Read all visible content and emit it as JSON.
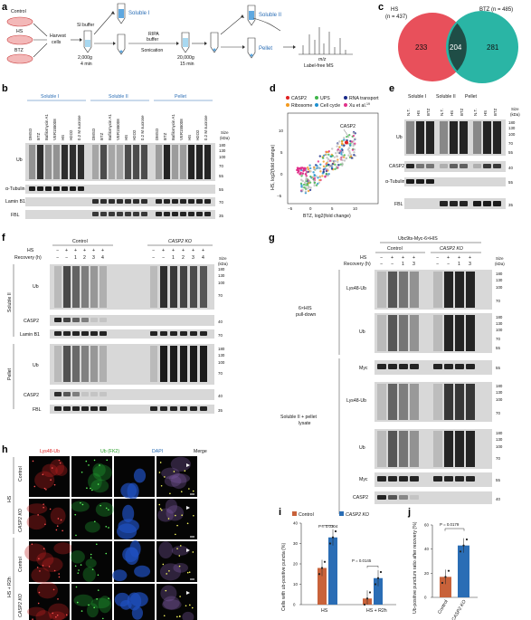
{
  "panel_labels": [
    "a",
    "b",
    "c",
    "d",
    "e",
    "f",
    "g",
    "h",
    "i",
    "j"
  ],
  "a": {
    "control": "Control",
    "hs": "HS",
    "btz": "BTZ",
    "harvest": "Harvest",
    "cells": "cells",
    "sl_buffer": "Sl buffer",
    "spin1": "2,000g",
    "time1": "4 min",
    "soluble1": "Soluble I",
    "ripa": "RIPA",
    "buffer": "buffer",
    "sonication": "Sonication",
    "spin2": "20,000g",
    "time2": "15 min",
    "soluble2": "Soluble II",
    "pellet": "Pellet",
    "mz": "m/z",
    "labelfree": "Label-free MS"
  },
  "b": {
    "groups": [
      "Soluble I",
      "Soluble II",
      "Pellet"
    ],
    "lanes": [
      "DMSO",
      "BTZ",
      "Bafilomycin A1",
      "VER155008",
      "HS",
      "H2O2",
      "0.2 M sucrose"
    ],
    "rows": [
      "Ub",
      "α-Tubulin",
      "Lamin B1",
      "FBL"
    ],
    "size_label": "Size\n(kDa)",
    "ub_sizes": [
      "180",
      "130",
      "100",
      "70",
      "55"
    ],
    "tub_size": "55",
    "lamin_size": "70",
    "fbl_size": "35"
  },
  "c": {
    "hs_label": "HS",
    "hs_n": "(n = 437)",
    "btz_label": "BTZ (n = 485)",
    "left_only": "233",
    "overlap": "204",
    "right_only": "281",
    "colors": {
      "hs": "#e8505b",
      "btz": "#2ab5a5",
      "overlap": "#1f4d46"
    }
  },
  "d": {
    "legend": [
      {
        "label": "CASP2",
        "color": "#e02020"
      },
      {
        "label": "UPS",
        "color": "#3fb54a"
      },
      {
        "label": "RNA transport",
        "color": "#1a2a8a"
      },
      {
        "label": "Ribosome",
        "color": "#f39a1e"
      },
      {
        "label": "Cell cycle",
        "color": "#1e90d0"
      },
      {
        "label": "Xu et al.",
        "color": "#e0308a"
      }
    ],
    "xu_ref": "19",
    "annotation": "CASP2",
    "xlabel": "BTZ, log2(fold change)",
    "ylabel": "HS, log2(fold change)",
    "xticks": [
      "−5",
      "0",
      "5",
      "10"
    ],
    "yticks": [
      "−5",
      "0",
      "5",
      "10"
    ]
  },
  "e": {
    "groups": [
      "Soluble I",
      "Soluble II",
      "Pellet"
    ],
    "lanes": [
      "N.T.",
      "HS",
      "BTZ"
    ],
    "rows": [
      "Ub",
      "CASP2",
      "α-Tubulin",
      "FBL"
    ],
    "size_label": "Size\n(kDa)",
    "ub_sizes": [
      "180",
      "130",
      "100",
      "70",
      "55"
    ],
    "casp_size": "40",
    "tub_size": "55",
    "fbl_size": "35"
  },
  "f": {
    "conditions": [
      "Control",
      "CASP2 KO"
    ],
    "hs_row": "HS",
    "recovery_row": "Recovery (h)",
    "hs_values": [
      "−",
      "+",
      "+",
      "+",
      "+",
      "+"
    ],
    "recovery_values": [
      "−",
      "−",
      "1",
      "2",
      "3",
      "4"
    ],
    "sections": [
      "Soluble II",
      "Pellet"
    ],
    "rows_sol": [
      "Ub",
      "CASP2",
      "Lamin B1"
    ],
    "rows_pel": [
      "Ub",
      "CASP2",
      "FBL"
    ],
    "size_label": "Size\n(kDa)",
    "ub_sizes": [
      "180",
      "130",
      "100",
      "70"
    ],
    "casp_size": "40",
    "lamin_size": "70",
    "fbl_size": "35"
  },
  "g": {
    "title": "Ubc9ts-Myc-6×HIS",
    "conditions": [
      "Control",
      "CASP2 KO"
    ],
    "hs_row": "HS",
    "recovery_row": "Recovery (h)",
    "hs_values": [
      "−",
      "+",
      "+",
      "+"
    ],
    "recovery_values": [
      "−",
      "−",
      "1",
      "3"
    ],
    "section1": "6×HIS\npull-down",
    "section2": "Soluble II + pellet\nlysate",
    "rows1": [
      "Lys48-Ub",
      "Ub",
      "Myc"
    ],
    "rows2": [
      "Lys48-Ub",
      "Ub",
      "Myc",
      "CASP2"
    ],
    "size_label": "Size\n(kDa)",
    "sizes_k48": [
      "180",
      "130",
      "100",
      "70"
    ],
    "sizes_ub": [
      "180",
      "130",
      "100",
      "70",
      "55"
    ],
    "myc_size": "55",
    "casp_size": "40"
  },
  "h": {
    "columns": [
      "Lys48-Ub",
      "Ub (FK2)",
      "DAPI",
      "Merge"
    ],
    "column_colors": [
      "#e02020",
      "#2aa02a",
      "#2a6db5",
      "#111111"
    ],
    "rows": [
      "Control",
      "CASP2 KO",
      "Control",
      "CASP2 KO"
    ],
    "conditions": [
      "HS",
      "HS + R2h"
    ]
  },
  "i": {
    "legend": [
      {
        "label": "Control",
        "color": "#c8623a"
      },
      {
        "label": "CASP2 KO",
        "color": "#2a6db5"
      }
    ],
    "ylabel": "Cells with ub-positive puncta (%)",
    "yticks": [
      "0",
      "10",
      "20",
      "30",
      "40"
    ],
    "categories": [
      "HS",
      "HS + R2h"
    ],
    "p1": "P = 0.0304",
    "p2": "P = 0.0145",
    "values": {
      "control": [
        18,
        3
      ],
      "ko": [
        33,
        13
      ]
    }
  },
  "j": {
    "p": "P = 0.0179",
    "ylabel": "Ub-positive punctum ratio after recovery (%)",
    "yticks": [
      "0",
      "20",
      "40",
      "60"
    ],
    "categories": [
      "Control",
      "CASP2 KO"
    ],
    "values": [
      17,
      43
    ]
  },
  "chart_data": [
    {
      "type": "bar",
      "title": "",
      "categories": [
        "HS",
        "HS + R2h"
      ],
      "series": [
        {
          "name": "Control",
          "values": [
            18,
            3
          ]
        },
        {
          "name": "CASP2 KO",
          "values": [
            33,
            13
          ]
        }
      ],
      "xlabel": "",
      "ylabel": "Cells with ub-positive puncta (%)",
      "ylim": [
        0,
        40
      ]
    },
    {
      "type": "bar",
      "title": "",
      "categories": [
        "Control",
        "CASP2 KO"
      ],
      "values": [
        17,
        43
      ],
      "xlabel": "",
      "ylabel": "Ub-positive punctum ratio after recovery (%)",
      "ylim": [
        0,
        60
      ]
    }
  ]
}
